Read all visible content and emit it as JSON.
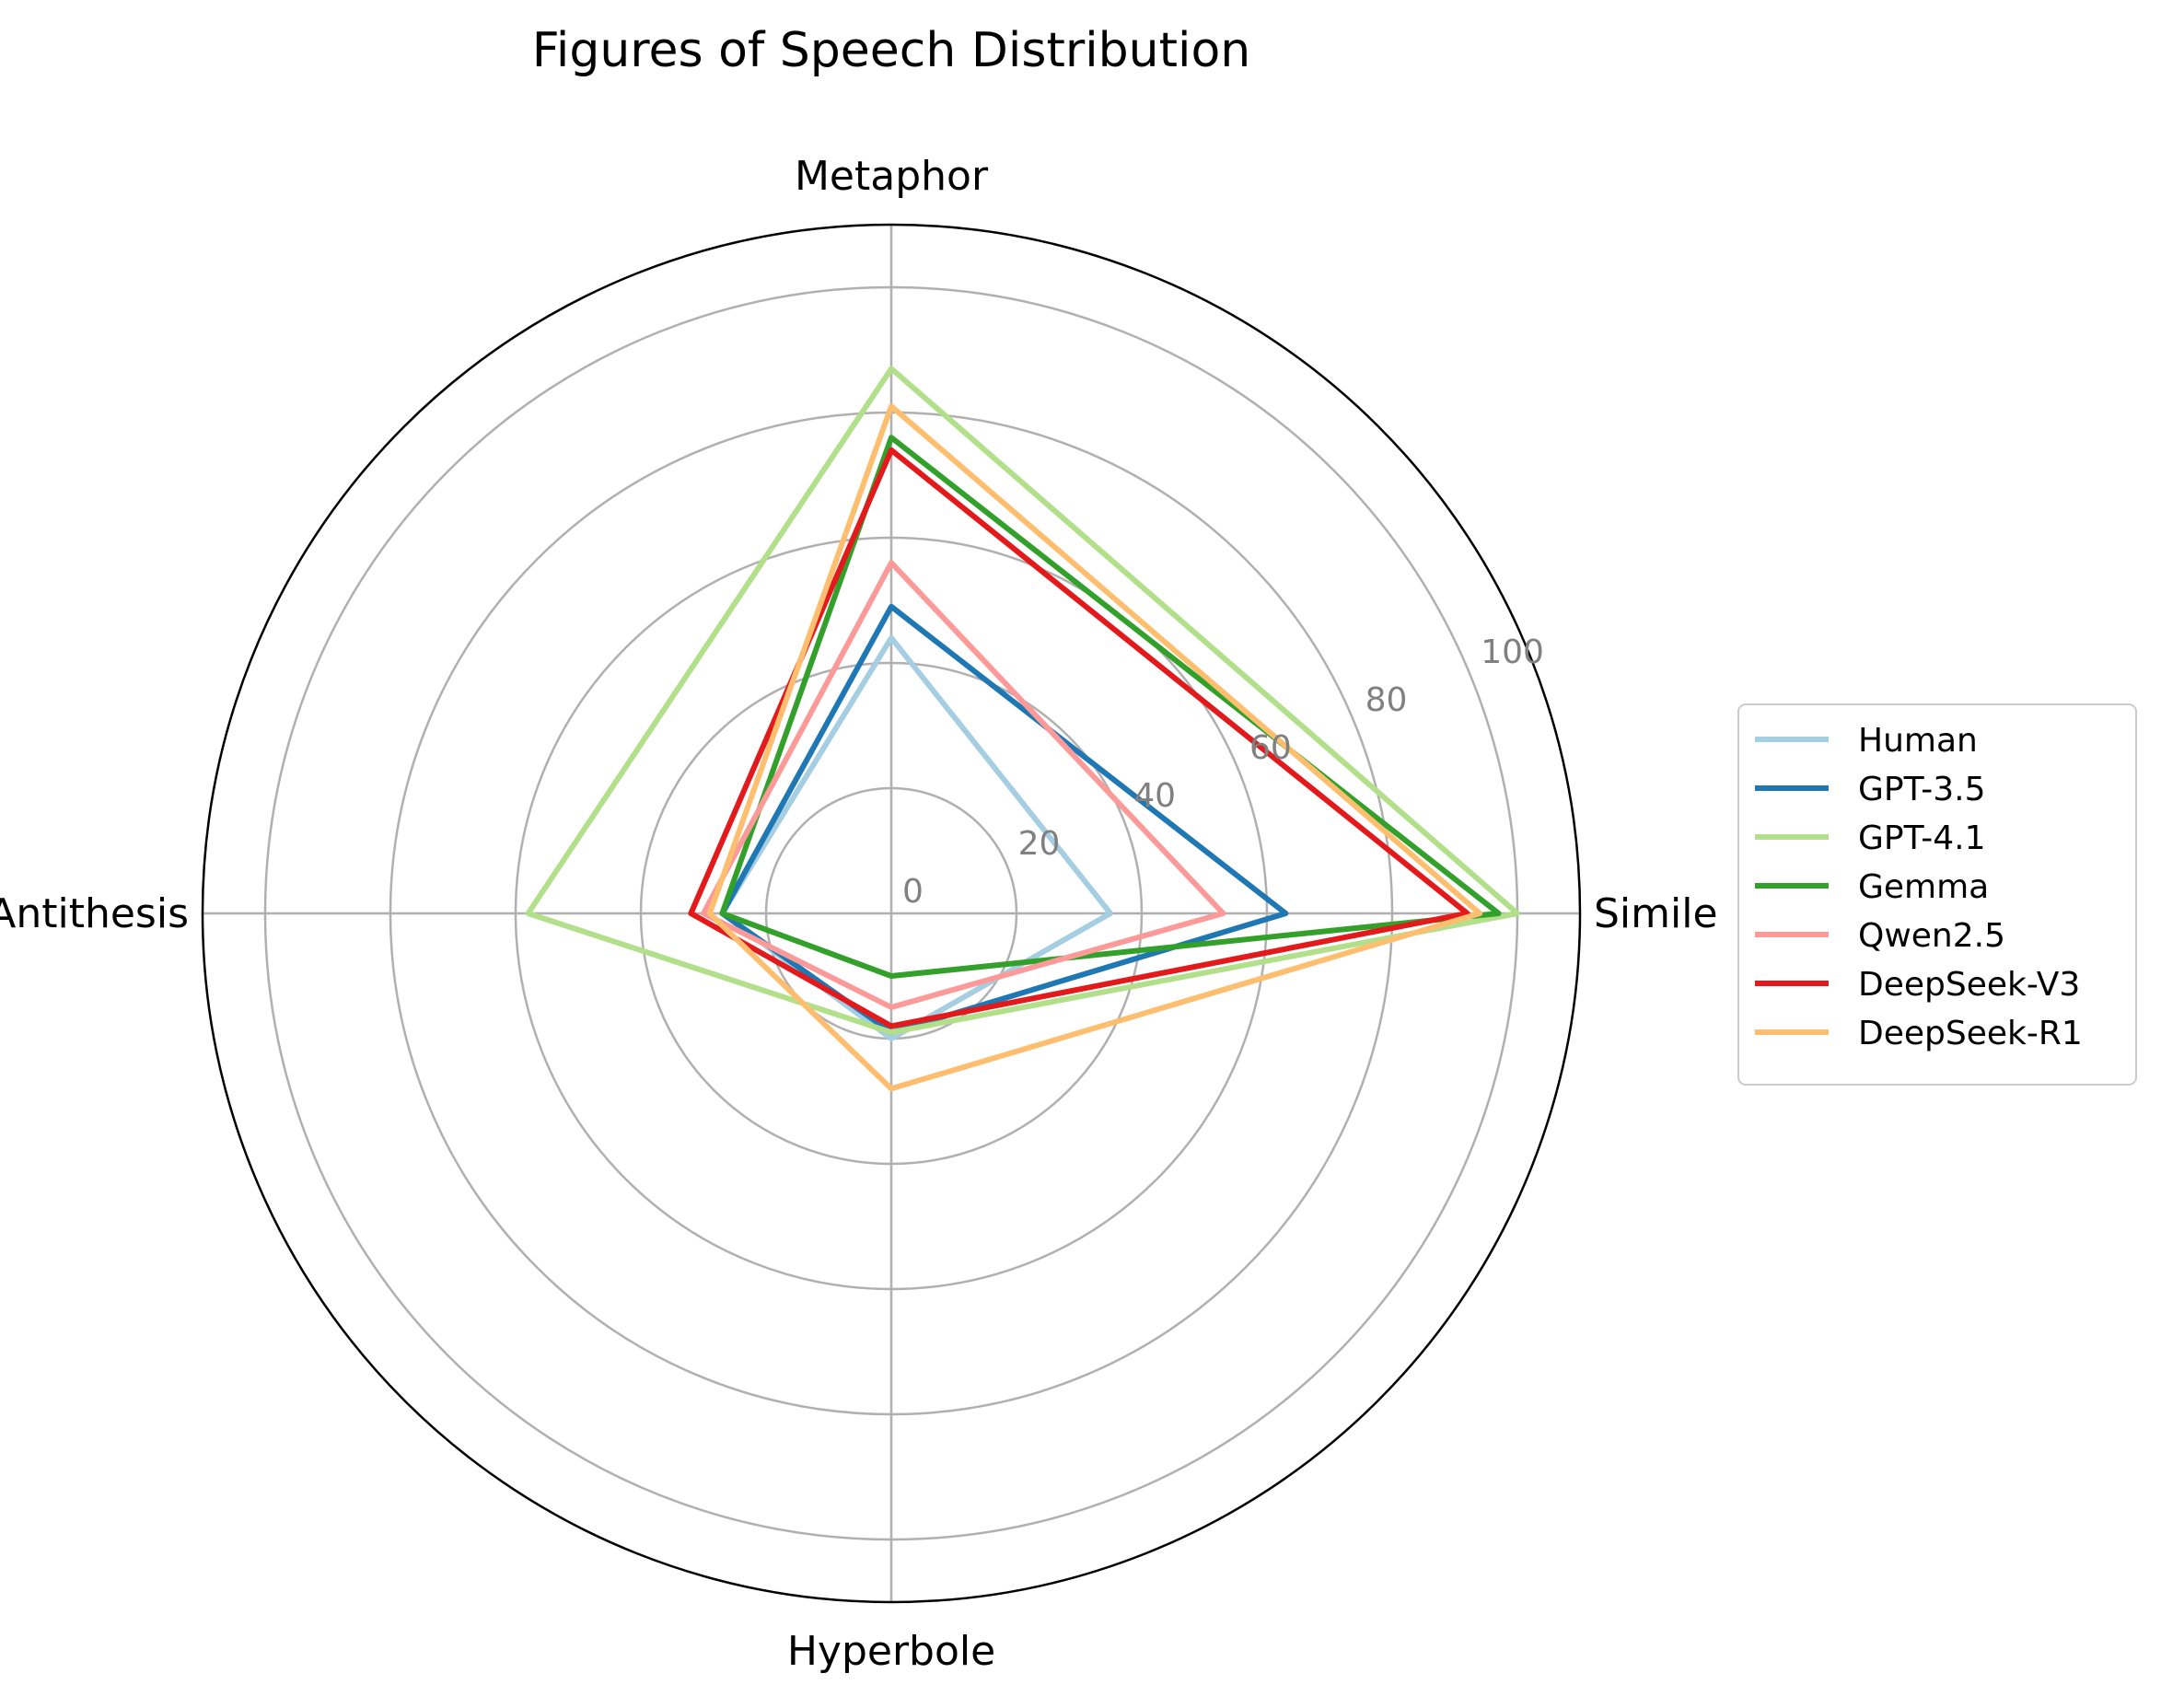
{
  "chart_data": {
    "type": "radar",
    "title": "Figures of Speech Distribution",
    "categories": [
      "Simile",
      "Metaphor",
      "Antithesis",
      "Hyperbole"
    ],
    "radial_ticks": [
      "0",
      "20",
      "40",
      "60",
      "80",
      "100"
    ],
    "rlim": [
      0,
      110
    ],
    "grid": true,
    "legend_position": "right",
    "series": [
      {
        "name": "Human",
        "color": "#a6cee3",
        "values": [
          35,
          44,
          27,
          20
        ]
      },
      {
        "name": "GPT-3.5",
        "color": "#1f78b4",
        "values": [
          63,
          49,
          27,
          19
        ]
      },
      {
        "name": "GPT-4.1",
        "color": "#b2df8a",
        "values": [
          100,
          87,
          58,
          19
        ]
      },
      {
        "name": "Gemma",
        "color": "#33a02c",
        "values": [
          97,
          76,
          27,
          10
        ]
      },
      {
        "name": "Qwen2.5",
        "color": "#fb9a99",
        "values": [
          53,
          56,
          30,
          15
        ]
      },
      {
        "name": "DeepSeek-V3",
        "color": "#e31a1c",
        "values": [
          92,
          74,
          32,
          18
        ]
      },
      {
        "name": "DeepSeek-R1",
        "color": "#fdbf6f",
        "values": [
          94,
          81,
          29,
          28
        ]
      }
    ]
  }
}
